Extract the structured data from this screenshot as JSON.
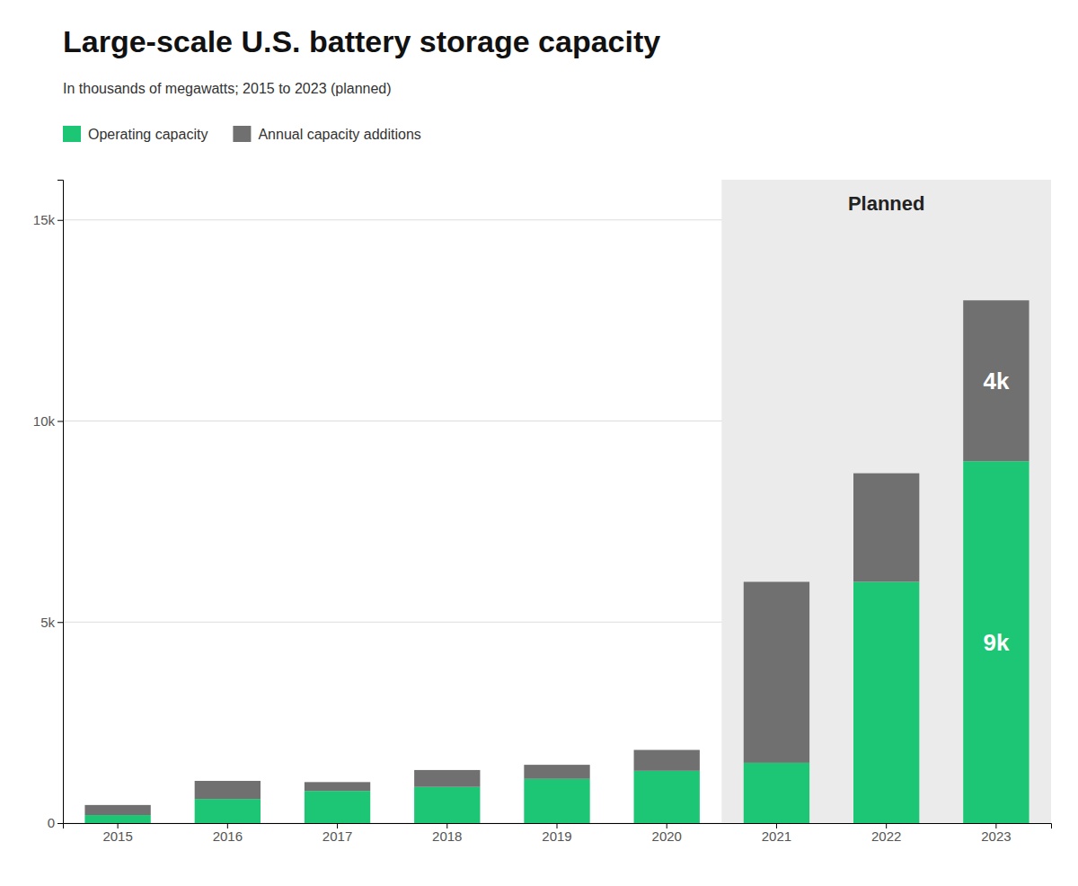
{
  "chart_data": {
    "type": "bar",
    "stacked": true,
    "title": "Large-scale U.S. battery storage capacity",
    "subtitle": "In thousands of megawatts; 2015 to 2023 (planned)",
    "categories": [
      "2015",
      "2016",
      "2017",
      "2018",
      "2019",
      "2020",
      "2021",
      "2022",
      "2023"
    ],
    "series": [
      {
        "name": "Operating capacity",
        "color": "#1cc674",
        "values": [
          200,
          600,
          800,
          900,
          1100,
          1300,
          1500,
          6000,
          9000
        ],
        "value_labels": [
          null,
          null,
          null,
          null,
          null,
          null,
          null,
          null,
          "9k"
        ]
      },
      {
        "name": "Annual capacity additions",
        "color": "#707070",
        "values": [
          250,
          450,
          220,
          420,
          350,
          520,
          4500,
          2700,
          4000
        ],
        "value_labels": [
          null,
          null,
          null,
          null,
          null,
          null,
          null,
          null,
          "4k"
        ]
      }
    ],
    "annotations": [
      {
        "text": "Planned",
        "x_start": "2021",
        "x_end": "2023",
        "color": "#ebebeb"
      }
    ],
    "ylim": [
      0,
      16000
    ],
    "yticks": [
      0,
      {
        "value": 5000,
        "label": "5k"
      },
      {
        "value": 10000,
        "label": "10k"
      },
      {
        "value": 15000,
        "label": "15k"
      }
    ],
    "grid": true,
    "legend": "upper left"
  }
}
